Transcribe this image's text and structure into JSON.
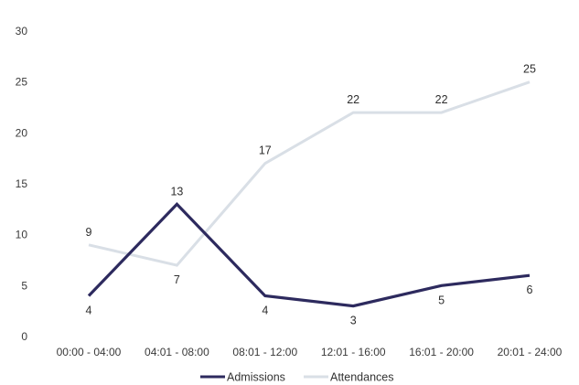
{
  "chart_data": {
    "type": "line",
    "title": "",
    "xlabel": "",
    "ylabel": "",
    "categories": [
      "00:00 - 04:00",
      "04:01 - 08:00",
      "08:01 - 12:00",
      "12:01 - 16:00",
      "16:01 - 20:00",
      "20:01 - 24:00"
    ],
    "ylim": [
      0,
      30
    ],
    "yticks": [
      0,
      5,
      10,
      15,
      20,
      25,
      30
    ],
    "grid": false,
    "legend": "bottom",
    "series": [
      {
        "name": "Admissions",
        "color": "#2d2a5e",
        "values": [
          4,
          13,
          4,
          3,
          5,
          6
        ]
      },
      {
        "name": "Attendances",
        "color": "#d9dfe6",
        "values": [
          9,
          7,
          17,
          22,
          22,
          25
        ]
      }
    ]
  }
}
